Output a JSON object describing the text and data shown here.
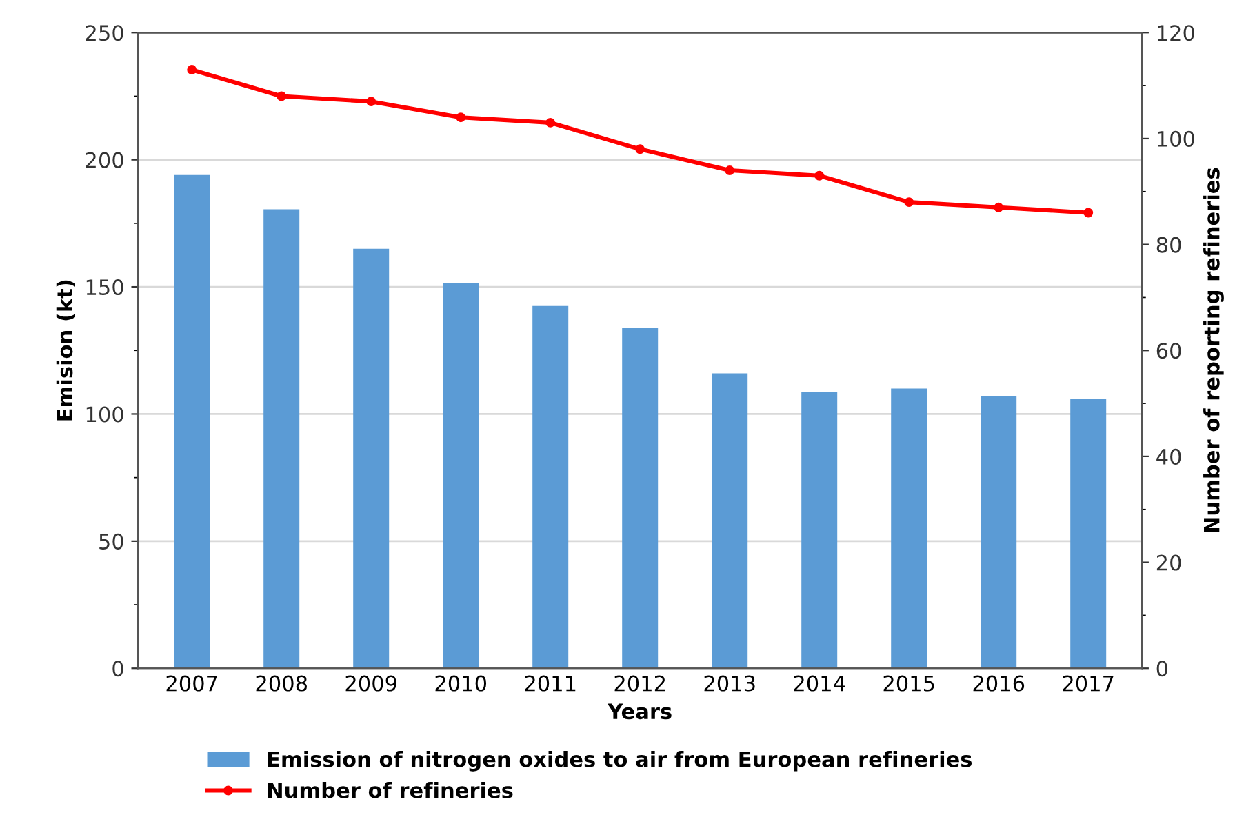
{
  "chart_data": {
    "type": "bar",
    "xlabel": "Years",
    "ylabel": "Emision (kt)",
    "y2label": "Number of reporting refineries",
    "categories": [
      "2007",
      "2008",
      "2009",
      "2010",
      "2011",
      "2012",
      "2013",
      "2014",
      "2015",
      "2016",
      "2017"
    ],
    "series": [
      {
        "name": "Emission of nitrogen oxides to air from European refineries",
        "color": "#5b9bd5",
        "values": [
          194,
          180.5,
          165,
          151.5,
          142.5,
          134,
          116,
          108.5,
          110,
          107,
          106
        ]
      },
      {
        "name": "Number of refineries",
        "type": "line",
        "axis": "y2",
        "color": "#ff0000",
        "marker": "circle",
        "values": [
          113,
          108,
          107,
          104,
          103,
          98,
          94,
          93,
          88,
          87,
          86
        ]
      }
    ],
    "ylim": [
      0,
      250
    ],
    "yticks": [
      0,
      50,
      100,
      150,
      200,
      250
    ],
    "y2lim": [
      0,
      120
    ],
    "y2ticks": [
      0,
      20,
      40,
      60,
      80,
      100,
      120
    ],
    "grid": "y",
    "legend": "bottom"
  }
}
